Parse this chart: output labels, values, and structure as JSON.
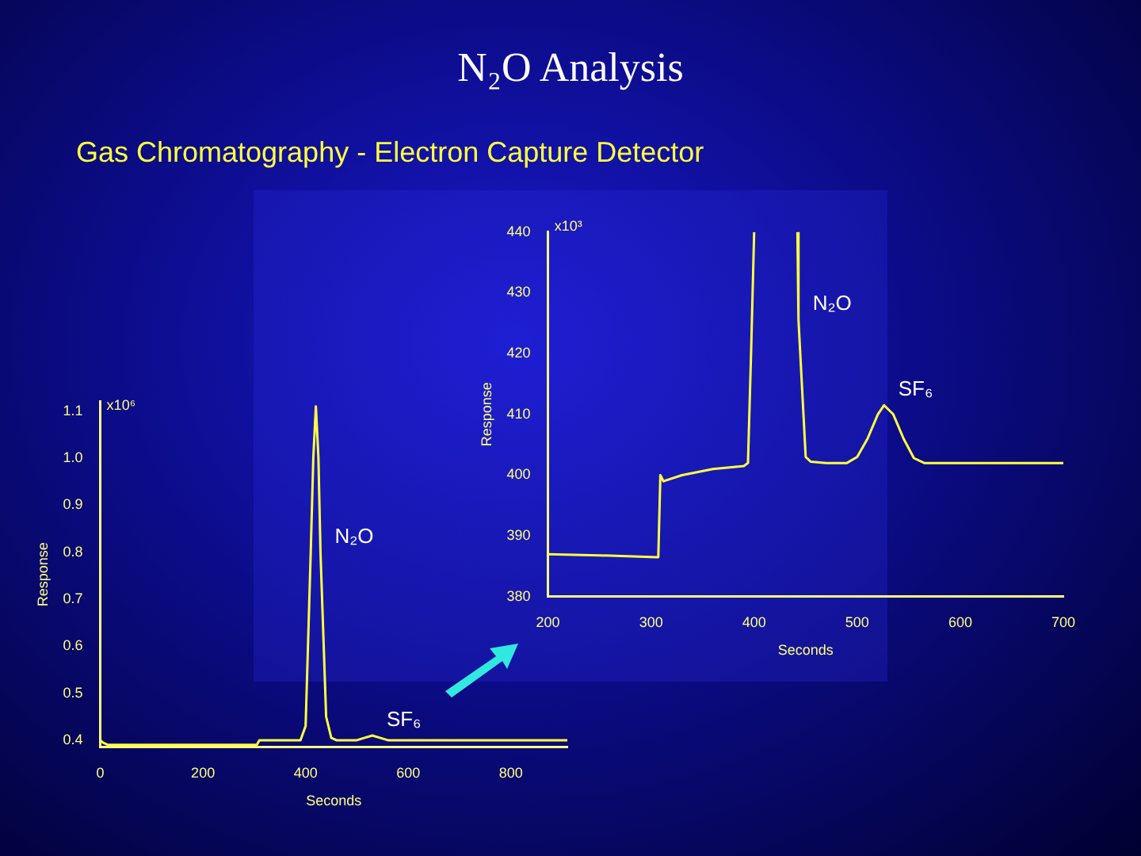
{
  "chart_data": [
    {
      "type": "line",
      "title": "N₂O Analysis",
      "subtitle": "Gas Chromatography - Electron Capture Detector",
      "xlabel": "Seconds",
      "ylabel": "Response",
      "x": [
        0,
        5,
        15,
        30,
        100,
        200,
        250,
        305,
        310,
        320,
        390,
        400,
        410,
        415,
        420,
        425,
        429,
        440,
        450,
        460,
        500,
        515,
        530,
        545,
        560,
        600,
        700,
        800,
        910
      ],
      "series": [
        {
          "color": "#ffff40",
          "values": [
            0.4,
            0.395,
            0.39,
            0.39,
            0.39,
            0.39,
            0.39,
            0.39,
            0.4,
            0.4,
            0.4,
            0.43,
            0.8,
            1.0,
            1.11,
            1.0,
            0.8,
            0.45,
            0.405,
            0.4,
            0.4,
            0.405,
            0.41,
            0.405,
            0.4,
            0.4,
            0.4,
            0.4,
            0.4
          ]
        }
      ],
      "xlim": [
        0,
        910
      ],
      "xticks": [
        0,
        200,
        400,
        600,
        800
      ],
      "ylim": [
        0.385,
        1.12
      ],
      "yticks": [
        0.4,
        0.5,
        0.6,
        0.7,
        0.8,
        0.9,
        {
          "value": 1.0,
          "label": "1.0"
        },
        {
          "value": 1.1,
          "label": "1.1"
        }
      ],
      "annotations": [
        "x10⁶",
        {
          "text": "N₂O",
          "x": 429,
          "y": 0.8
        },
        {
          "text": "SF₆",
          "x": 530,
          "y": 0.41
        }
      ],
      "grid": false,
      "legend": false
    },
    {
      "type": "line",
      "xlabel": "Seconds",
      "ylabel": "Response",
      "x": [
        200,
        250,
        305,
        307,
        309,
        312,
        330,
        360,
        390,
        394,
        397,
        400,
        401,
        441,
        442,
        443,
        450,
        455,
        470,
        490,
        500,
        510,
        520,
        526,
        535,
        545,
        555,
        565,
        600,
        650,
        700
      ],
      "series": [
        {
          "color": "#ffff40",
          "values": [
            387,
            386.8,
            386.5,
            386.5,
            400,
            399,
            400,
            401,
            401.5,
            402,
            420,
            440,
            null,
            null,
            440,
            425.6,
            403,
            402.2,
            402,
            402,
            403,
            406,
            410,
            411.5,
            410,
            406,
            402.8,
            402,
            402,
            402,
            402
          ]
        }
      ],
      "xlim": [
        200,
        700
      ],
      "xticks": [
        200,
        300,
        400,
        500,
        600,
        700
      ],
      "ylim": [
        380,
        440
      ],
      "yticks": [
        380,
        390,
        400,
        410,
        420,
        430,
        {
          "value": 440,
          "label": "440"
        }
      ],
      "annotations": [
        "x10³",
        {
          "text": "N₂O",
          "x": 443,
          "y": 425.6
        },
        {
          "text": "SF₆",
          "x": 526,
          "y": 411.5
        }
      ],
      "grid": false,
      "legend": false
    }
  ]
}
